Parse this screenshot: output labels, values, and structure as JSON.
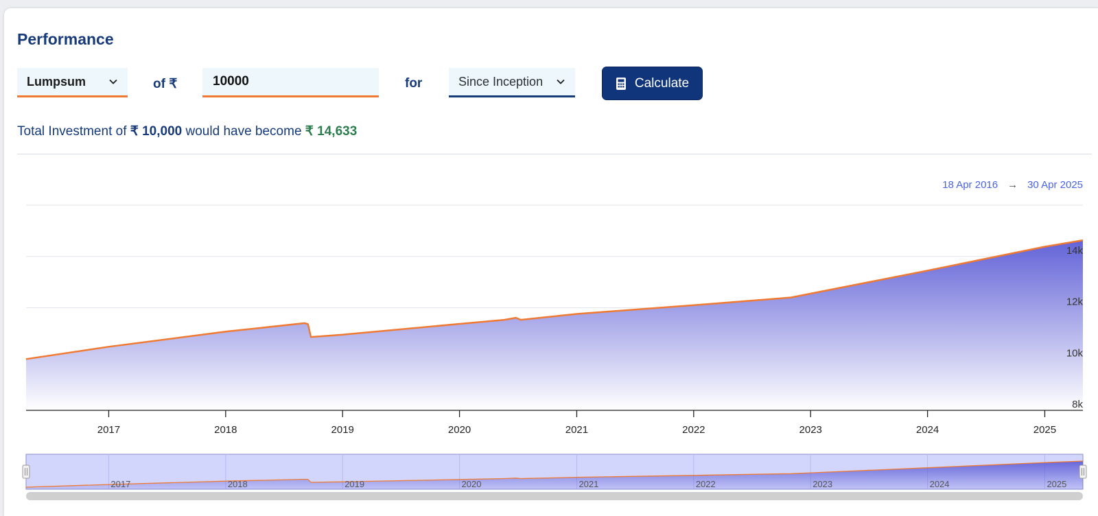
{
  "title": "Performance",
  "controls": {
    "mode_options": [
      "Lumpsum"
    ],
    "mode_selected": "Lumpsum",
    "of_label": "of ₹",
    "amount_value": "10000",
    "for_label": "for",
    "period_selected": "Since Inception",
    "calculate_label": "Calculate"
  },
  "summary": {
    "prefix": "Total Investment of",
    "invested": "₹ 10,000",
    "middle": "would have become",
    "result": "₹ 14,633"
  },
  "date_range": {
    "from": "18 Apr 2016",
    "arrow": "→",
    "to": "30 Apr 2025"
  },
  "colors": {
    "line": "#f07a32",
    "area_top": "#5b5bd6",
    "area_bottom": "#ffffff",
    "navigator_bg": "#d3d6fc",
    "brand": "#173a7a",
    "positive": "#2e7d4f"
  },
  "chart_data": {
    "type": "area",
    "x_range": [
      "2016-04-18",
      "2025-04-30"
    ],
    "ylim": [
      8000,
      16000
    ],
    "y_ticks": [
      {
        "value": 8000,
        "label": "8k"
      },
      {
        "value": 10000,
        "label": "10k"
      },
      {
        "value": 12000,
        "label": "12k"
      },
      {
        "value": 14000,
        "label": "14k"
      }
    ],
    "x_ticks": [
      "2017",
      "2018",
      "2019",
      "2020",
      "2021",
      "2022",
      "2023",
      "2024",
      "2025"
    ],
    "grid": true,
    "series": [
      {
        "values": [
          [
            "2016-04-18",
            10000
          ],
          [
            "2017-01-01",
            10480
          ],
          [
            "2018-01-01",
            11070
          ],
          [
            "2018-09-05",
            11400
          ],
          [
            "2018-09-15",
            11360
          ],
          [
            "2018-09-24",
            10860
          ],
          [
            "2019-01-01",
            10950
          ],
          [
            "2020-01-01",
            11370
          ],
          [
            "2020-05-20",
            11530
          ],
          [
            "2020-06-25",
            11610
          ],
          [
            "2020-07-10",
            11530
          ],
          [
            "2021-01-01",
            11760
          ],
          [
            "2022-01-01",
            12100
          ],
          [
            "2022-11-01",
            12400
          ],
          [
            "2023-01-01",
            12550
          ],
          [
            "2024-01-01",
            13450
          ],
          [
            "2025-01-01",
            14380
          ],
          [
            "2025-04-30",
            14633
          ]
        ]
      }
    ],
    "navigator": {
      "x_ticks": [
        "2017",
        "2018",
        "2019",
        "2020",
        "2021",
        "2022",
        "2023",
        "2024",
        "2025"
      ]
    }
  }
}
